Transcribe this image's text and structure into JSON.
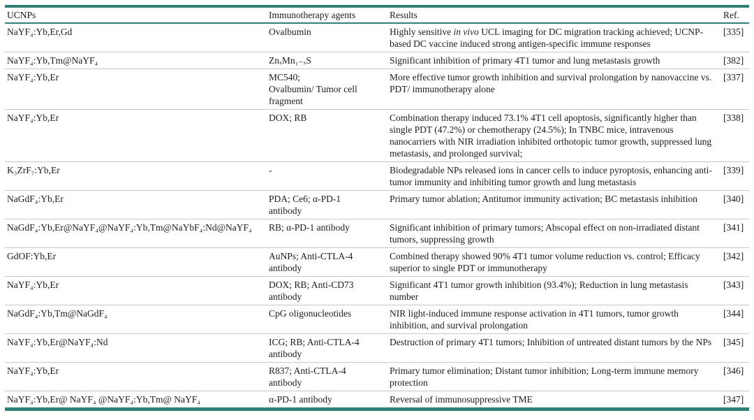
{
  "colors": {
    "accent_teal": "#2e7f78",
    "separator_gray": "#c6c6c6",
    "text": "#1c1c1c"
  },
  "table": {
    "headers": [
      "UCNPs",
      "Immunotherapy agents",
      "Results",
      "Ref."
    ],
    "rows": [
      {
        "ucnp": "NaYF₄:Yb,Er,Gd",
        "agents": "Ovalbumin",
        "results": [
          {
            "t": "Highly sensitive "
          },
          {
            "t": "in vivo",
            "i": true
          },
          {
            "t": " UCL imaging for DC migration tracking achieved; UCNP-based DC vaccine induced strong antigen-specific immune responses"
          }
        ],
        "ref": "[335]"
      },
      {
        "ucnp": "NaYF₄:Yb,Tm@NaYF₄",
        "agents": "ZnₓMn₁₋ₓS",
        "results": "Significant inhibition of primary 4T1 tumor and lung metastasis growth",
        "ref": "[382]"
      },
      {
        "ucnp": "NaYF₄:Yb,Er",
        "agents": "MC540;\nOvalbumin/ Tumor cell\nfragment",
        "results": "More effective tumor growth inhibition and survival prolongation by nanovaccine vs. PDT/ immunotherapy alone",
        "ref": "[337]"
      },
      {
        "ucnp": "NaYF₄:Yb,Er",
        "agents": "DOX; RB",
        "results": "Combination therapy induced 73.1% 4T1 cell apoptosis, significantly higher than single PDT (47.2%) or chemotherapy (24.5%); In TNBC mice, intravenous nanocarriers with NIR irradiation inhibited orthotopic tumor growth, suppressed lung metastasis, and prolonged survival;",
        "ref": "[338]"
      },
      {
        "ucnp": "K₃ZrF₇:Yb,Er",
        "agents": "-",
        "results": "Biodegradable NPs released ions in cancer cells to induce pyroptosis, enhancing anti-tumor immunity and inhibiting tumor growth and lung metastasis",
        "ref": "[339]"
      },
      {
        "ucnp": "NaGdF₄:Yb,Er",
        "agents": "PDA; Ce6; α-PD-1\nantibody",
        "results": "Primary tumor ablation; Antitumor immunity activation; BC metastasis inhibition",
        "ref": "[340]"
      },
      {
        "ucnp": "NaGdF₄:Yb,Er@NaYF₄@NaYF₄:Yb,Tm@NaYbF₄:Nd@NaYF₄",
        "agents": "RB; α-PD-1 antibody",
        "results": "Significant inhibition of primary tumors; Abscopal effect on non-irradiated distant tumors, suppressing growth",
        "ref": "[341]"
      },
      {
        "ucnp": "GdOF:Yb,Er",
        "agents": "AuNPs; Anti-CTLA-4\nantibody",
        "results": "Combined therapy showed 90% 4T1 tumor volume reduction vs. control; Efficacy superior to single PDT or immunotherapy",
        "ref": "[342]"
      },
      {
        "ucnp": "NaYF₄:Yb,Er",
        "agents": "DOX; RB; Anti-CD73\nantibody",
        "results": "Significant 4T1 tumor growth inhibition (93.4%); Reduction in lung metastasis number",
        "ref": "[343]"
      },
      {
        "ucnp": "NaGdF₄:Yb,Tm@NaGdF₄",
        "agents": "CpG oligonucleotides",
        "results": "NIR light-induced immune response activation in 4T1 tumors, tumor growth inhibition, and survival prolongation",
        "ref": "[344]"
      },
      {
        "ucnp": "NaYF₄:Yb,Er@NaYF₄:Nd",
        "agents": "ICG; RB; Anti-CTLA-4\nantibody",
        "results": "Destruction of primary 4T1 tumors; Inhibition of untreated distant tumors by the NPs",
        "ref": "[345]"
      },
      {
        "ucnp": "NaYF₄:Yb,Er",
        "agents": "R837; Anti-CTLA-4\nantibody",
        "results": "Primary tumor elimination; Distant tumor inhibition; Long-term immune memory protection",
        "ref": "[346]"
      },
      {
        "ucnp": "NaYF₄:Yb,Er@ NaYF₄ @NaYF₄:Yb,Tm@ NaYF₄",
        "agents": "α-PD-1 antibody",
        "results": "Reversal of immunosuppressive TME",
        "ref": "[347]"
      }
    ]
  }
}
